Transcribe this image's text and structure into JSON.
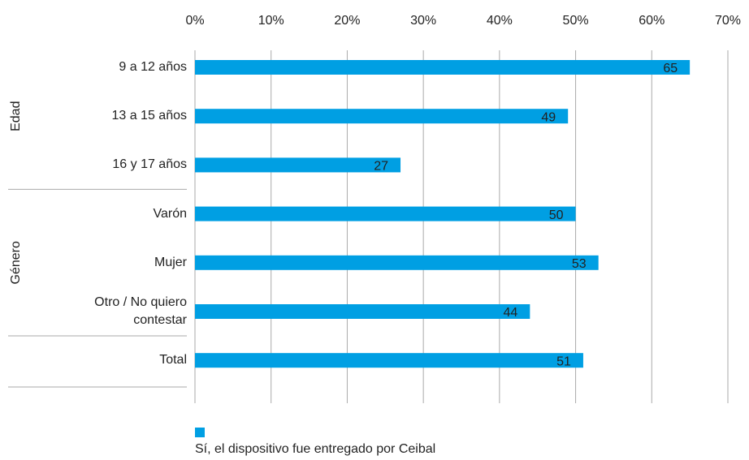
{
  "chart_data": {
    "type": "bar",
    "orientation": "horizontal",
    "categories": [
      "9 a 12 años",
      "13 a 15 años",
      "16 y 17 años",
      "Varón",
      "Mujer",
      "Otro / No quiero contestar",
      "Total"
    ],
    "groups": [
      {
        "label": "Edad",
        "size": 3
      },
      {
        "label": "Género",
        "size": 3
      }
    ],
    "series": [
      {
        "name": "Sí, el dispositivo fue entregado por Ceibal",
        "color": "#009fe3",
        "values": [
          65,
          49,
          27,
          50,
          53,
          44,
          51
        ]
      }
    ],
    "xlim": [
      0,
      70
    ],
    "xticks": [
      {
        "value": 0,
        "label": "0%"
      },
      {
        "value": 10,
        "label": "10%"
      },
      {
        "value": 20,
        "label": "20%"
      },
      {
        "value": 30,
        "label": "30%"
      },
      {
        "value": 40,
        "label": "40%"
      },
      {
        "value": 50,
        "label": "50%"
      },
      {
        "value": 60,
        "label": "60%"
      },
      {
        "value": 70,
        "label": "70%"
      }
    ],
    "grid": true,
    "legend": "bottom"
  }
}
